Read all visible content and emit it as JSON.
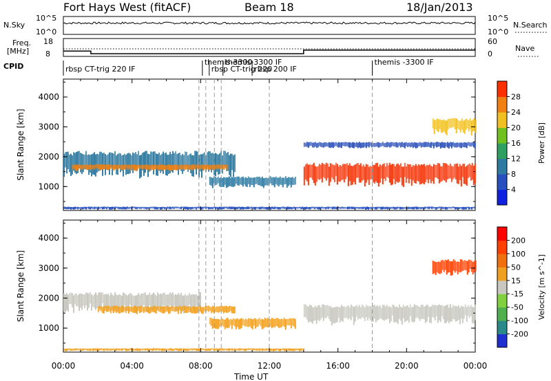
{
  "header": {
    "radar": "Fort Hays West (fitACF)",
    "beam": "Beam 18",
    "date": "18/Jan/2013"
  },
  "status_panels": {
    "nsky_label": "N.Sky",
    "nsky_ticks": [
      "10^5",
      "10^0"
    ],
    "nsearch_label": "N.Search",
    "nsearch_ticks": [
      "10^5",
      "10^0"
    ],
    "freq_label_1": "Freq.",
    "freq_label_2": "[MHz]",
    "freq_ticks": [
      "18",
      "8"
    ],
    "nave_label": "Nave",
    "nave_ticks": [
      "60",
      "0"
    ],
    "cpid_label": "CPID",
    "cpid_entries": [
      {
        "t": 0.0,
        "label": "rbsp CT-trig 220 IF"
      },
      {
        "t": 8.1,
        "label": "themis-3300"
      },
      {
        "t": 8.5,
        "label": "rbsp CT-trig 220"
      },
      {
        "t": 9.3,
        "label": "themis-3300 IF"
      },
      {
        "t": 11.0,
        "label": "rbsp 200 IF"
      },
      {
        "t": 18.0,
        "label": "themis -3300 IF"
      }
    ],
    "freq_series": [
      {
        "t": 0.0,
        "v": 11.0
      },
      {
        "t": 1.6,
        "v": 11.0
      },
      {
        "t": 1.6,
        "v": 9.5
      },
      {
        "t": 14.0,
        "v": 9.5
      },
      {
        "t": 14.0,
        "v": 11.5
      },
      {
        "t": 24.0,
        "v": 11.5
      }
    ]
  },
  "chart_data": [
    {
      "type": "heatmap",
      "name": "power-panel",
      "xlabel": "",
      "ylabel": "Slant Range [km]",
      "xlim": [
        0,
        24
      ],
      "ylim": [
        200,
        4600
      ],
      "yticks": [
        1000,
        2000,
        3000,
        4000
      ],
      "colorbar_label": "Power [dB]",
      "colorbar_ticks": [
        "28",
        "24",
        "20",
        "16",
        "12",
        "8",
        "4"
      ],
      "colorbar_colors": [
        "#1020e0",
        "#2850c0",
        "#2f7aa0",
        "#30a060",
        "#70c020",
        "#f0c020",
        "#f08010",
        "#ff3000"
      ],
      "vertical_markers": [
        7.9,
        8.3,
        8.8,
        9.2,
        12.0,
        18.0
      ],
      "regions": [
        {
          "t0": 0.0,
          "t1": 10.0,
          "r0": 1400,
          "r1": 2200,
          "color": "#2f7aa0"
        },
        {
          "t0": 0.5,
          "t1": 9.5,
          "r0": 1550,
          "r1": 1750,
          "color": "#f08010"
        },
        {
          "t0": 8.5,
          "t1": 13.5,
          "r0": 1000,
          "r1": 1350,
          "color": "#2f7aa0"
        },
        {
          "t0": 14.0,
          "t1": 24.0,
          "r0": 1100,
          "r1": 1800,
          "color": "#ff3000"
        },
        {
          "t0": 14.0,
          "t1": 24.0,
          "r0": 2300,
          "r1": 2500,
          "color": "#2850c0"
        },
        {
          "t0": 21.5,
          "t1": 24.0,
          "r0": 2800,
          "r1": 3300,
          "color": "#f0c020"
        },
        {
          "t0": 0.0,
          "t1": 24.0,
          "r0": 240,
          "r1": 330,
          "color": "#2850c0"
        }
      ]
    },
    {
      "type": "heatmap",
      "name": "velocity-panel",
      "xlabel": "Time UT",
      "ylabel": "Slant Range [km]",
      "xlim": [
        0,
        24
      ],
      "ylim": [
        200,
        4600
      ],
      "yticks": [
        1000,
        2000,
        3000,
        4000
      ],
      "xticks": [
        "00:00",
        "04:00",
        "08:00",
        "12:00",
        "16:00",
        "20:00",
        "00:00"
      ],
      "colorbar_label": "Velocity [m s^-1]",
      "colorbar_ticks": [
        "200",
        "100",
        "50",
        "15",
        "-15",
        "-50",
        "-100",
        "-200"
      ],
      "colorbar_colors": [
        "#2030d0",
        "#2a8a8a",
        "#50b050",
        "#80d040",
        "#c8c8c0",
        "#f0a020",
        "#f07010",
        "#ff4000",
        "#ff0000"
      ],
      "vertical_markers": [
        7.9,
        8.3,
        8.8,
        9.2,
        12.0,
        18.0
      ],
      "regions": [
        {
          "t0": 0.0,
          "t1": 8.0,
          "r0": 1600,
          "r1": 2200,
          "color": "#c8c8c0"
        },
        {
          "t0": 2.0,
          "t1": 10.0,
          "r0": 1500,
          "r1": 1750,
          "color": "#f0a020"
        },
        {
          "t0": 8.5,
          "t1": 13.5,
          "r0": 1000,
          "r1": 1350,
          "color": "#f0a020"
        },
        {
          "t0": 14.0,
          "t1": 24.0,
          "r0": 1200,
          "r1": 1800,
          "color": "#c8c8c0"
        },
        {
          "t0": 21.5,
          "t1": 24.0,
          "r0": 2800,
          "r1": 3300,
          "color": "#ff4000"
        },
        {
          "t0": 0.0,
          "t1": 14.0,
          "r0": 240,
          "r1": 330,
          "color": "#f0a020"
        }
      ]
    }
  ]
}
